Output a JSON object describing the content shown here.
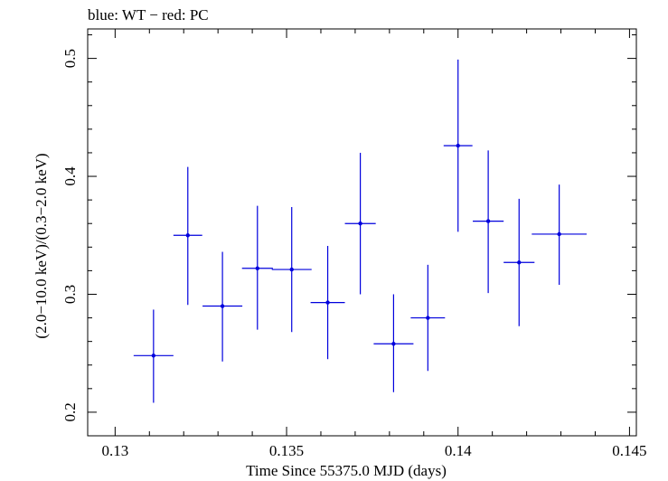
{
  "chart_data": {
    "type": "scatter",
    "title": "blue: WT − red: PC",
    "xlabel": "Time Since 55375.0 MJD (days)",
    "ylabel": "(2.0−10.0 keV)/(0.3−2.0 keV)",
    "xlim": [
      0.1292,
      0.1452
    ],
    "ylim": [
      0.18,
      0.525
    ],
    "x_ticks": [
      {
        "value": 0.13,
        "label": "0.13"
      },
      {
        "value": 0.135,
        "label": "0.135"
      },
      {
        "value": 0.14,
        "label": "0.14"
      },
      {
        "value": 0.145,
        "label": "0.145"
      }
    ],
    "y_ticks": [
      {
        "value": 0.2,
        "label": "0.2"
      },
      {
        "value": 0.3,
        "label": "0.3"
      },
      {
        "value": 0.4,
        "label": "0.4"
      },
      {
        "value": 0.5,
        "label": "0.5"
      }
    ],
    "grid": false,
    "series": [
      {
        "color": "#0000dd",
        "points": [
          {
            "x": 0.13112,
            "y": 0.248,
            "xerr": 0.00058,
            "ylo": 0.208,
            "yhi": 0.287
          },
          {
            "x": 0.13212,
            "y": 0.35,
            "xerr": 0.00042,
            "ylo": 0.291,
            "yhi": 0.408
          },
          {
            "x": 0.13313,
            "y": 0.29,
            "xerr": 0.00058,
            "ylo": 0.243,
            "yhi": 0.336
          },
          {
            "x": 0.13415,
            "y": 0.322,
            "xerr": 0.00045,
            "ylo": 0.27,
            "yhi": 0.375
          },
          {
            "x": 0.13515,
            "y": 0.321,
            "xerr": 0.00058,
            "ylo": 0.268,
            "yhi": 0.374
          },
          {
            "x": 0.1362,
            "y": 0.293,
            "xerr": 0.0005,
            "ylo": 0.245,
            "yhi": 0.341
          },
          {
            "x": 0.13715,
            "y": 0.36,
            "xerr": 0.00045,
            "ylo": 0.3,
            "yhi": 0.42
          },
          {
            "x": 0.13812,
            "y": 0.258,
            "xerr": 0.00058,
            "ylo": 0.217,
            "yhi": 0.3
          },
          {
            "x": 0.13912,
            "y": 0.28,
            "xerr": 0.0005,
            "ylo": 0.235,
            "yhi": 0.325
          },
          {
            "x": 0.14,
            "y": 0.426,
            "xerr": 0.00042,
            "ylo": 0.353,
            "yhi": 0.499
          },
          {
            "x": 0.14088,
            "y": 0.362,
            "xerr": 0.00045,
            "ylo": 0.301,
            "yhi": 0.422
          },
          {
            "x": 0.14178,
            "y": 0.327,
            "xerr": 0.00045,
            "ylo": 0.273,
            "yhi": 0.381
          },
          {
            "x": 0.14295,
            "y": 0.351,
            "xerr": 0.0008,
            "ylo": 0.308,
            "yhi": 0.393
          }
        ]
      }
    ]
  }
}
